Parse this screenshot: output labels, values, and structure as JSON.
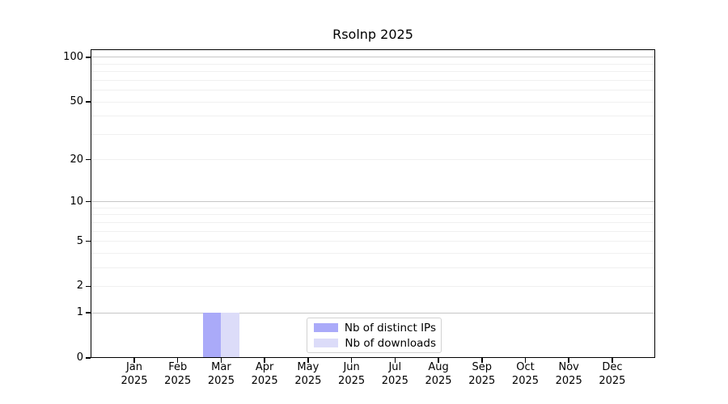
{
  "chart_data": {
    "type": "bar",
    "title": "Rsolnp 2025",
    "x_year": "2025",
    "categories": [
      "Jan",
      "Feb",
      "Mar",
      "Apr",
      "May",
      "Jun",
      "Jul",
      "Aug",
      "Sep",
      "Oct",
      "Nov",
      "Dec"
    ],
    "series": [
      {
        "name": "Nb of distinct IPs",
        "color": "#aaaaf9",
        "values": [
          0,
          0,
          1,
          0,
          0,
          0,
          0,
          0,
          0,
          0,
          0,
          0
        ]
      },
      {
        "name": "Nb of downloads",
        "color": "#dcdcf9",
        "values": [
          0,
          0,
          1,
          0,
          0,
          0,
          0,
          0,
          0,
          0,
          0,
          0
        ]
      }
    ],
    "y_scale": "log1p",
    "ylim": [
      0,
      113
    ],
    "y_ticks": [
      0,
      1,
      2,
      5,
      10,
      20,
      50,
      100
    ],
    "y_major_gridlines": [
      1,
      10,
      100
    ],
    "y_minor_gridlines": [
      2,
      3,
      4,
      5,
      6,
      7,
      8,
      9,
      20,
      30,
      40,
      50,
      60,
      70,
      80,
      90
    ],
    "grid": true,
    "legend_position": "bottom-center-inside"
  },
  "colors": {
    "axis": "#000000",
    "major_grid": "#c6c6c6",
    "minor_grid": "#f0f0f0",
    "legend_border": "#d2d2d2",
    "background": "#ffffff"
  }
}
